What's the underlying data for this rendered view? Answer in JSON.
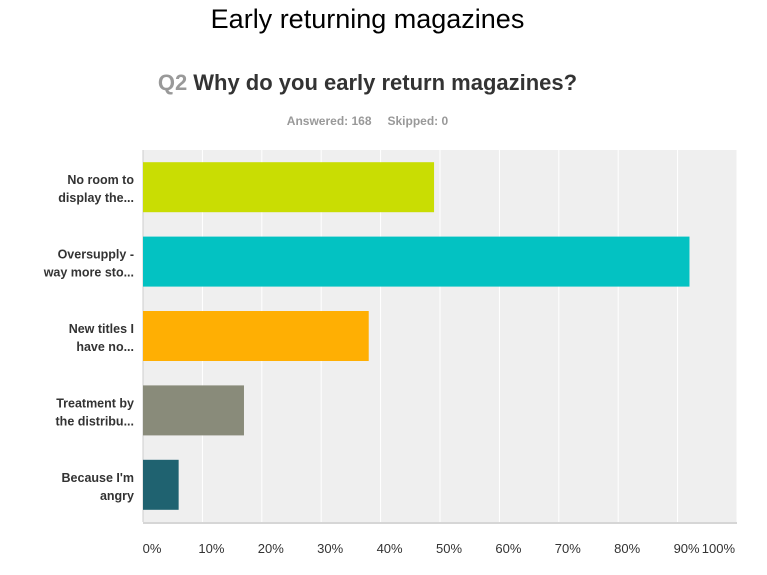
{
  "page_title": "Early returning magazines",
  "question": {
    "number": "Q2",
    "text": "Why do you early return magazines?"
  },
  "stats": {
    "answered": "Answered: 168",
    "skipped": "Skipped: 0"
  },
  "chart_data": {
    "type": "bar",
    "orientation": "horizontal",
    "title": "Q2 Why do you early return magazines?",
    "categories": [
      [
        "No room to",
        "display the..."
      ],
      [
        "Oversupply -",
        "way more sto..."
      ],
      [
        "New titles I",
        "have no..."
      ],
      [
        "Treatment by",
        "the distribu..."
      ],
      [
        "Because I'm",
        "angry"
      ]
    ],
    "values": [
      49,
      92,
      38,
      17,
      6
    ],
    "colors": [
      "#c9dd03",
      "#03c2c2",
      "#ffaf03",
      "#898b7a",
      "#1f6270"
    ],
    "xlim": [
      0,
      100
    ],
    "ticks": [
      "0%",
      "10%",
      "20%",
      "30%",
      "40%",
      "50%",
      "60%",
      "70%",
      "80%",
      "90%",
      "100%"
    ],
    "grid": true
  }
}
